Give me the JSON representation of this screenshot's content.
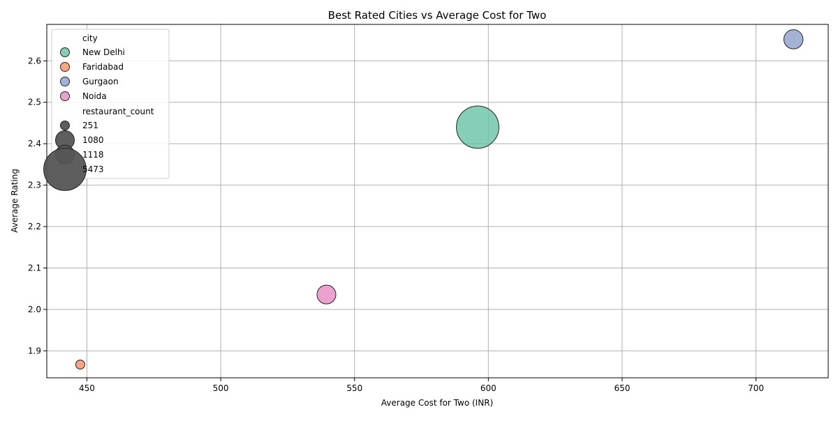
{
  "chart_data": {
    "type": "scatter",
    "title": "Best Rated Cities vs Average Cost for Two",
    "xlabel": "Average Cost for Two (INR)",
    "ylabel": "Average Rating",
    "xlim": [
      435,
      727
    ],
    "ylim": [
      1.835,
      2.688
    ],
    "xticks": [
      450,
      500,
      550,
      600,
      650,
      700
    ],
    "yticks": [
      1.9,
      2.0,
      2.1,
      2.2,
      2.3,
      2.4,
      2.5,
      2.6
    ],
    "grid": true,
    "legend_position": "upper-left",
    "legend": {
      "hue_title": "city",
      "size_title": "restaurant_count",
      "size_entries": [
        251,
        1080,
        1118,
        5473
      ]
    },
    "series": [
      {
        "name": "New Delhi",
        "x": 596,
        "y": 2.44,
        "restaurant_count": 5473,
        "color": "#66c2a5"
      },
      {
        "name": "Faridabad",
        "x": 447.5,
        "y": 1.867,
        "restaurant_count": 251,
        "color": "#fc8d62"
      },
      {
        "name": "Gurgaon",
        "x": 714,
        "y": 2.652,
        "restaurant_count": 1118,
        "color": "#8da0cb"
      },
      {
        "name": "Noida",
        "x": 539.5,
        "y": 2.036,
        "restaurant_count": 1080,
        "color": "#e78ac3"
      }
    ],
    "size_key_color": "#555555"
  }
}
